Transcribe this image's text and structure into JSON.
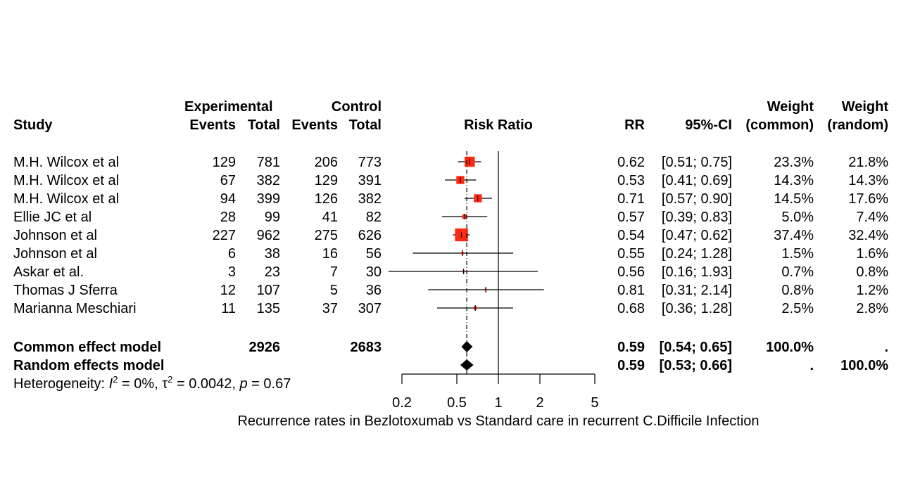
{
  "chart_data": {
    "type": "forest",
    "measure": "Risk Ratio",
    "xlabel": "Recurrence rates in Bezlotoxumab vs Standard care in recurrent C.Difficile Infection",
    "x_scale": "log",
    "xlim": [
      0.2,
      5
    ],
    "x_ticks": [
      "0.2",
      "0.5",
      "1",
      "2",
      "5"
    ],
    "x_tick_values": [
      0.2,
      0.5,
      1,
      2,
      5
    ],
    "reference_line": 1,
    "colors": {
      "box": "#ff2a10",
      "diamond": "#000000"
    },
    "headers": {
      "study": "Study",
      "experimental": "Experimental",
      "control": "Control",
      "events": "Events",
      "total": "Total",
      "events2": "Events",
      "total2": "Total",
      "risk_ratio": "Risk Ratio",
      "rr": "RR",
      "ci": "95%-CI",
      "weight": "Weight",
      "common": "(common)",
      "weight2": "Weight",
      "random": "(random)"
    },
    "studies": [
      {
        "name": "M.H. Wilcox et al",
        "exp_events": "129",
        "exp_total": "781",
        "ctrl_events": "206",
        "ctrl_total": "773",
        "rr": 0.62,
        "lower": 0.51,
        "upper": 0.75,
        "rr_text": "0.62",
        "ci_text": "[0.51; 0.75]",
        "w_common": "23.3%",
        "w_random": "21.8%",
        "weight_common": 23.3
      },
      {
        "name": "M.H. Wilcox et al",
        "exp_events": "67",
        "exp_total": "382",
        "ctrl_events": "129",
        "ctrl_total": "391",
        "rr": 0.53,
        "lower": 0.41,
        "upper": 0.69,
        "rr_text": "0.53",
        "ci_text": "[0.41; 0.69]",
        "w_common": "14.3%",
        "w_random": "14.3%",
        "weight_common": 14.3
      },
      {
        "name": "M.H. Wilcox et al",
        "exp_events": "94",
        "exp_total": "399",
        "ctrl_events": "126",
        "ctrl_total": "382",
        "rr": 0.71,
        "lower": 0.57,
        "upper": 0.9,
        "rr_text": "0.71",
        "ci_text": "[0.57; 0.90]",
        "w_common": "14.5%",
        "w_random": "17.6%",
        "weight_common": 14.5
      },
      {
        "name": "Ellie JC et al",
        "exp_events": "28",
        "exp_total": "99",
        "ctrl_events": "41",
        "ctrl_total": "82",
        "rr": 0.57,
        "lower": 0.39,
        "upper": 0.83,
        "rr_text": "0.57",
        "ci_text": "[0.39; 0.83]",
        "w_common": "5.0%",
        "w_random": "7.4%",
        "weight_common": 5.0
      },
      {
        "name": "Johnson et al",
        "exp_events": "227",
        "exp_total": "962",
        "ctrl_events": "275",
        "ctrl_total": "626",
        "rr": 0.54,
        "lower": 0.47,
        "upper": 0.62,
        "rr_text": "0.54",
        "ci_text": "[0.47; 0.62]",
        "w_common": "37.4%",
        "w_random": "32.4%",
        "weight_common": 37.4
      },
      {
        "name": "Johnson et al",
        "exp_events": "6",
        "exp_total": "38",
        "ctrl_events": "16",
        "ctrl_total": "56",
        "rr": 0.55,
        "lower": 0.24,
        "upper": 1.28,
        "rr_text": "0.55",
        "ci_text": "[0.24; 1.28]",
        "w_common": "1.5%",
        "w_random": "1.6%",
        "weight_common": 1.5
      },
      {
        "name": "Askar et al.",
        "exp_events": "3",
        "exp_total": "23",
        "ctrl_events": "7",
        "ctrl_total": "30",
        "rr": 0.56,
        "lower": 0.16,
        "upper": 1.93,
        "rr_text": "0.56",
        "ci_text": "[0.16; 1.93]",
        "w_common": "0.7%",
        "w_random": "0.8%",
        "weight_common": 0.7
      },
      {
        "name": "Thomas J Sferra",
        "exp_events": "12",
        "exp_total": "107",
        "ctrl_events": "5",
        "ctrl_total": "36",
        "rr": 0.81,
        "lower": 0.31,
        "upper": 2.14,
        "rr_text": "0.81",
        "ci_text": "[0.31; 2.14]",
        "w_common": "0.8%",
        "w_random": "1.2%",
        "weight_common": 0.8
      },
      {
        "name": "Marianna Meschiari",
        "exp_events": "11",
        "exp_total": "135",
        "ctrl_events": "37",
        "ctrl_total": "307",
        "rr": 0.68,
        "lower": 0.36,
        "upper": 1.28,
        "rr_text": "0.68",
        "ci_text": "[0.36; 1.28]",
        "w_common": "2.5%",
        "w_random": "2.8%",
        "weight_common": 2.5
      }
    ],
    "summaries": [
      {
        "name": "Common effect model",
        "exp_total": "2926",
        "ctrl_total": "2683",
        "rr": 0.59,
        "lower": 0.54,
        "upper": 0.65,
        "rr_text": "0.59",
        "ci_text": "[0.54; 0.65]",
        "w_common": "100.0%",
        "w_random": "."
      },
      {
        "name": "Random effects model",
        "exp_total": "",
        "ctrl_total": "",
        "rr": 0.59,
        "lower": 0.53,
        "upper": 0.66,
        "rr_text": "0.59",
        "ci_text": "[0.53; 0.66]",
        "w_common": ".",
        "w_random": "100.0%"
      }
    ],
    "heterogeneity": {
      "prefix": "Heterogeneity: ",
      "i2_label": "I",
      "i2_value": "0%",
      "tau2_label": "τ",
      "tau2_value": "0.0042",
      "p_label": "p",
      "p_value": "0.67"
    }
  }
}
